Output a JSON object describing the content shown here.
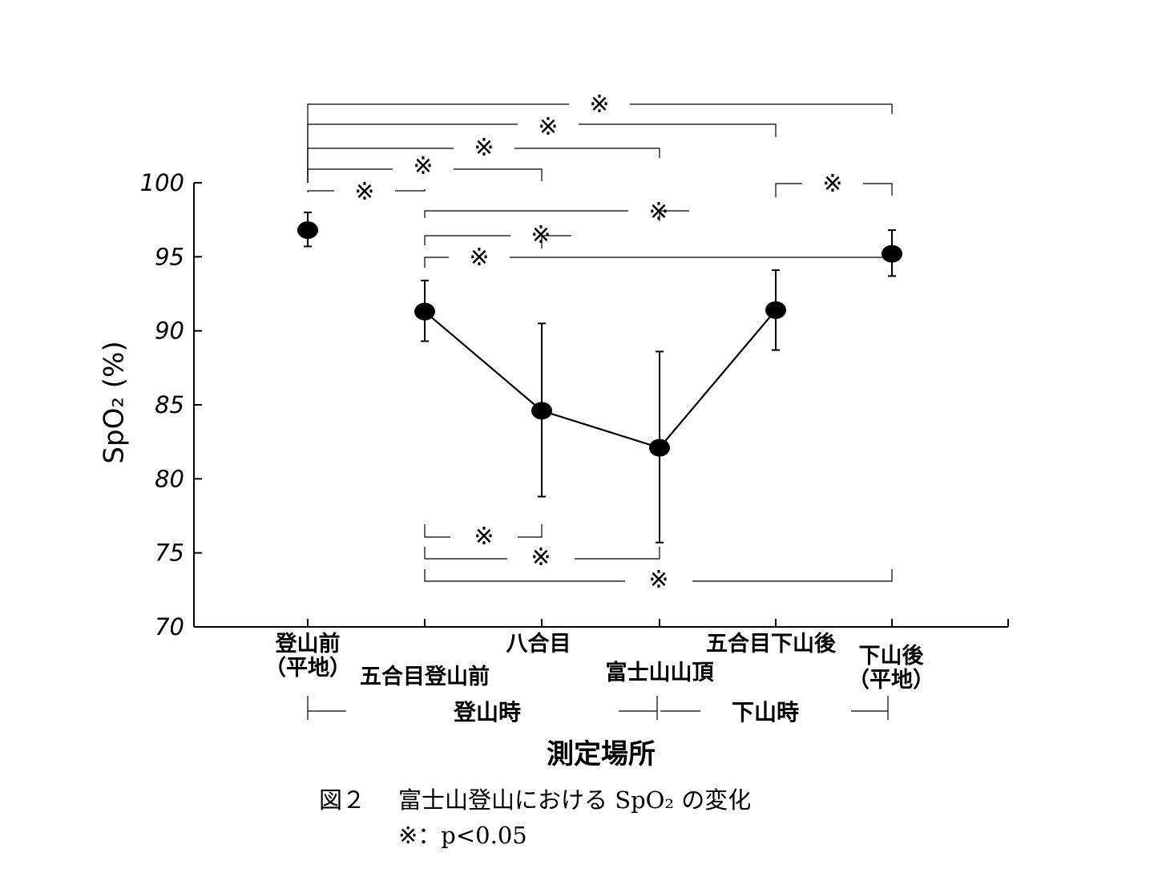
{
  "chart_data": {
    "type": "line",
    "ylabel": "SpO₂ (%)",
    "xlabel": "測定場所",
    "ylim": [
      70,
      100
    ],
    "yticks": [
      "70",
      "75",
      "80",
      "85",
      "90",
      "95",
      "100"
    ],
    "grid": false,
    "categories": [
      [
        "登山前",
        "（平地）"
      ],
      [
        "五合目登山前"
      ],
      [
        "八合目"
      ],
      [
        "富士山山頂"
      ],
      [
        "五合目下山後"
      ],
      [
        "下山後",
        "（平地）"
      ]
    ],
    "series": [
      {
        "values": [
          96.8,
          91.3,
          84.6,
          82.1,
          91.4,
          95.2
        ],
        "err_low": [
          95.7,
          89.3,
          78.8,
          75.7,
          88.7,
          93.7
        ],
        "err_high": [
          98.0,
          93.4,
          90.5,
          88.6,
          94.1,
          96.8
        ],
        "connected": [
          false,
          true,
          true,
          true,
          true,
          false
        ]
      }
    ],
    "phases": [
      "登山時",
      "下山時"
    ],
    "significance": {
      "symbol": "※",
      "pairs_top": [
        [
          0,
          1
        ],
        [
          0,
          2
        ],
        [
          0,
          3
        ],
        [
          0,
          4
        ],
        [
          0,
          5
        ],
        [
          1,
          3
        ],
        [
          1,
          2
        ],
        [
          1,
          5
        ],
        [
          4,
          5
        ]
      ],
      "pairs_bottom": [
        [
          1,
          2
        ],
        [
          1,
          3
        ],
        [
          1,
          5
        ]
      ]
    }
  },
  "caption": {
    "figure_no": "図２",
    "title": "富士山登山における SpO₂ の変化",
    "note": "※：p<0.05"
  }
}
